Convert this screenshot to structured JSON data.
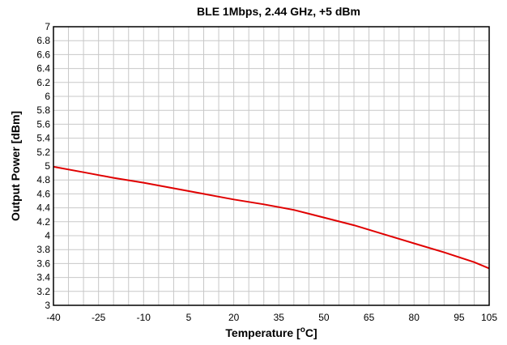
{
  "chart_data": {
    "type": "line",
    "title": "BLE 1Mbps, 2.44 GHz, +5 dBm",
    "xlabel": "Temperature [°C]",
    "xlabel_parts": {
      "main": "Temperature [",
      "sup": "o",
      "rest": "C]"
    },
    "ylabel": "Output Power [dBm]",
    "xlim": [
      -40,
      105
    ],
    "ylim": [
      3,
      7
    ],
    "xticks": [
      -40,
      -25,
      -10,
      5,
      20,
      35,
      50,
      65,
      80,
      95,
      105
    ],
    "yticks": [
      3,
      3.2,
      3.4,
      3.6,
      3.8,
      4,
      4.2,
      4.4,
      4.6,
      4.8,
      5,
      5.2,
      5.4,
      5.6,
      5.8,
      6,
      6.2,
      6.4,
      6.6,
      6.8,
      7
    ],
    "grid": true,
    "series": [
      {
        "color": "#e00000",
        "x": [
          -40,
          -30,
          -20,
          -10,
          0,
          10,
          20,
          30,
          40,
          50,
          60,
          70,
          80,
          90,
          100,
          105
        ],
        "y": [
          4.99,
          4.91,
          4.83,
          4.76,
          4.68,
          4.6,
          4.52,
          4.45,
          4.37,
          4.26,
          4.15,
          4.02,
          3.89,
          3.76,
          3.62,
          3.53
        ]
      }
    ]
  }
}
